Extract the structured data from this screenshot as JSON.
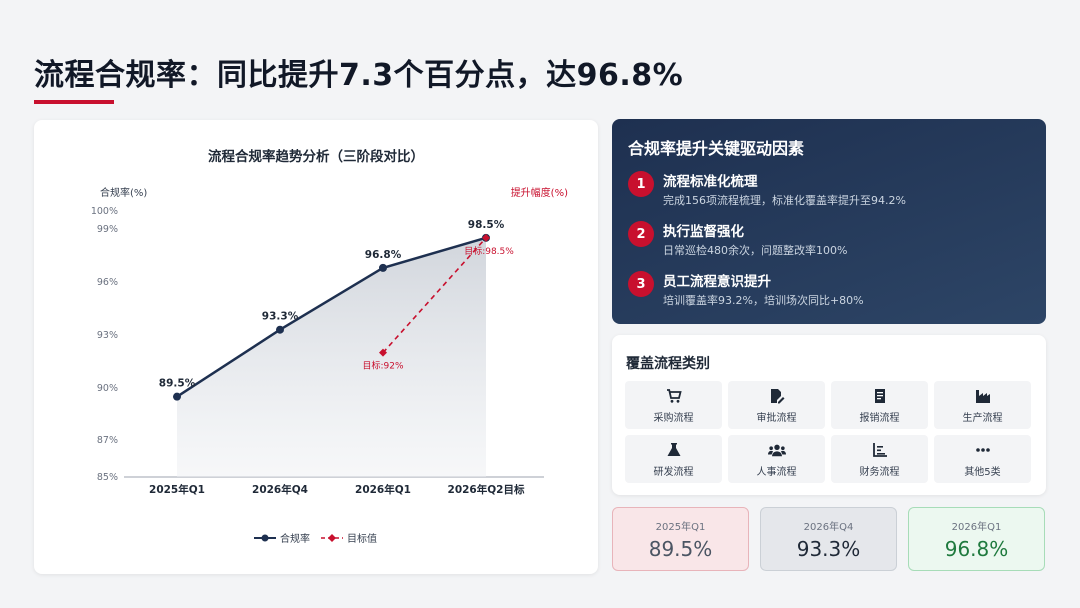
{
  "header": {
    "title": "流程合规率：同比提升7.3个百分点，达96.8%"
  },
  "chart_data": {
    "type": "line",
    "title": "流程合规率趋势分析（三阶段对比）",
    "ylabel": "合规率(%)",
    "y2label": "提升幅度(%)",
    "categories": [
      "2025年Q1",
      "2026年Q4",
      "2026年Q1",
      "2026年Q2目标"
    ],
    "ylim": [
      85,
      100
    ],
    "yticks": [
      "85%",
      "87%",
      "90%",
      "93%",
      "96%",
      "99%",
      "100%"
    ],
    "series": [
      {
        "name": "合规率",
        "values": [
          89.5,
          93.3,
          96.8,
          98.5
        ],
        "labels": [
          "89.5%",
          "93.3%",
          "96.8%",
          "98.5%"
        ],
        "color": "#1e3050"
      },
      {
        "name": "目标值",
        "points": [
          [
            2,
            92
          ],
          [
            3,
            98.5
          ]
        ],
        "labels": [
          "目标:92%",
          "目标:98.5%"
        ],
        "color": "#c8102e"
      }
    ],
    "legend": "bottom",
    "area_fill": true
  },
  "drivers": {
    "title": "合规率提升关键驱动因素",
    "items": [
      {
        "num": "1",
        "title": "流程标准化梳理",
        "desc": "完成156项流程梳理，标准化覆盖率提升至94.2%"
      },
      {
        "num": "2",
        "title": "执行监督强化",
        "desc": "日常巡检480余次，问题整改率100%"
      },
      {
        "num": "3",
        "title": "员工流程意识提升",
        "desc": "培训覆盖率93.2%，培训场次同比+80%"
      }
    ]
  },
  "categories": {
    "title": "覆盖流程类别",
    "items": [
      {
        "label": "采购流程",
        "icon": "cart-icon"
      },
      {
        "label": "审批流程",
        "icon": "file-signature-icon"
      },
      {
        "label": "报销流程",
        "icon": "receipt-icon"
      },
      {
        "label": "生产流程",
        "icon": "industry-icon"
      },
      {
        "label": "研发流程",
        "icon": "flask-icon"
      },
      {
        "label": "人事流程",
        "icon": "users-icon"
      },
      {
        "label": "财务流程",
        "icon": "chart-icon"
      },
      {
        "label": "其他5类",
        "icon": "more-icon"
      }
    ]
  },
  "stats": [
    {
      "label": "2025年Q1",
      "value": "89.5%"
    },
    {
      "label": "2026年Q4",
      "value": "93.3%"
    },
    {
      "label": "2026年Q1",
      "value": "96.8%"
    }
  ]
}
